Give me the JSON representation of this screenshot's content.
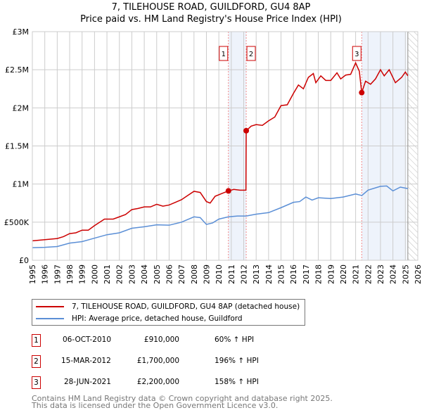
{
  "title": "7, TILEHOUSE ROAD, GUILDFORD, GU4 8AP",
  "subtitle": "Price paid vs. HM Land Registry's House Price Index (HPI)",
  "colors": {
    "property": "#cc0000",
    "hpi": "#5b8fd6",
    "shade": "#eef3fb"
  },
  "chart_data": {
    "type": "line",
    "title": "7, TILEHOUSE ROAD, GUILDFORD, GU4 8AP — Price paid vs. HM Land Registry's House Price Index (HPI)",
    "xlim": [
      1995,
      2026
    ],
    "ylim": [
      0,
      3000000
    ],
    "x_ticks": [
      "1995",
      "1996",
      "1997",
      "1998",
      "1999",
      "2000",
      "2001",
      "2002",
      "2003",
      "2004",
      "2005",
      "2006",
      "2007",
      "2008",
      "2009",
      "2010",
      "2011",
      "2012",
      "2013",
      "2014",
      "2015",
      "2016",
      "2017",
      "2018",
      "2019",
      "2020",
      "2021",
      "2022",
      "2023",
      "2024",
      "2025",
      "2026"
    ],
    "y_ticks": [
      {
        "v": 0,
        "label": "£0"
      },
      {
        "v": 500000,
        "label": "£500K"
      },
      {
        "v": 1000000,
        "label": "£1M"
      },
      {
        "v": 1500000,
        "label": "£1.5M"
      },
      {
        "v": 2000000,
        "label": "£2M"
      },
      {
        "v": 2500000,
        "label": "£2.5M"
      },
      {
        "v": 3000000,
        "label": "£3M"
      }
    ],
    "grid": true,
    "shaded_ranges": [
      [
        2010.77,
        2012.2
      ],
      [
        2021.49,
        2025.1
      ]
    ],
    "forecast_hatch_from": 2025.2,
    "series": [
      {
        "name": "7, TILEHOUSE ROAD, GUILDFORD, GU4 8AP (detached house)",
        "color": "#cc0000",
        "points": [
          [
            1995,
            255000
          ],
          [
            1996,
            270000
          ],
          [
            1997,
            285000
          ],
          [
            1997.5,
            310000
          ],
          [
            1998,
            350000
          ],
          [
            1998.5,
            360000
          ],
          [
            1999,
            395000
          ],
          [
            1999.5,
            395000
          ],
          [
            2000,
            455000
          ],
          [
            2000.8,
            540000
          ],
          [
            2001.5,
            540000
          ],
          [
            2002,
            570000
          ],
          [
            2002.5,
            600000
          ],
          [
            2003,
            665000
          ],
          [
            2003.5,
            680000
          ],
          [
            2004,
            700000
          ],
          [
            2004.5,
            700000
          ],
          [
            2005,
            735000
          ],
          [
            2005.5,
            710000
          ],
          [
            2006,
            725000
          ],
          [
            2006.5,
            760000
          ],
          [
            2007,
            795000
          ],
          [
            2007.5,
            850000
          ],
          [
            2008,
            905000
          ],
          [
            2008.5,
            890000
          ],
          [
            2009,
            770000
          ],
          [
            2009.3,
            750000
          ],
          [
            2009.7,
            840000
          ],
          [
            2010.3,
            880000
          ],
          [
            2010.77,
            910000
          ],
          [
            2011.2,
            930000
          ],
          [
            2011.7,
            920000
          ],
          [
            2012.18,
            920000
          ],
          [
            2012.2,
            1700000
          ],
          [
            2012.6,
            1760000
          ],
          [
            2013,
            1780000
          ],
          [
            2013.5,
            1770000
          ],
          [
            2014,
            1830000
          ],
          [
            2014.5,
            1880000
          ],
          [
            2015,
            2030000
          ],
          [
            2015.5,
            2040000
          ],
          [
            2016,
            2190000
          ],
          [
            2016.4,
            2300000
          ],
          [
            2016.8,
            2250000
          ],
          [
            2017.2,
            2400000
          ],
          [
            2017.6,
            2450000
          ],
          [
            2017.8,
            2330000
          ],
          [
            2018.2,
            2420000
          ],
          [
            2018.6,
            2360000
          ],
          [
            2019,
            2360000
          ],
          [
            2019.5,
            2460000
          ],
          [
            2019.8,
            2380000
          ],
          [
            2020.2,
            2430000
          ],
          [
            2020.6,
            2440000
          ],
          [
            2021,
            2590000
          ],
          [
            2021.3,
            2480000
          ],
          [
            2021.49,
            2200000
          ],
          [
            2021.8,
            2350000
          ],
          [
            2022.2,
            2310000
          ],
          [
            2022.6,
            2380000
          ],
          [
            2023,
            2500000
          ],
          [
            2023.3,
            2420000
          ],
          [
            2023.7,
            2500000
          ],
          [
            2024.2,
            2330000
          ],
          [
            2024.7,
            2400000
          ],
          [
            2025,
            2470000
          ],
          [
            2025.2,
            2420000
          ]
        ]
      },
      {
        "name": "HPI: Average price, detached house, Guildford",
        "color": "#5b8fd6",
        "points": [
          [
            1995,
            165000
          ],
          [
            1996,
            170000
          ],
          [
            1997,
            180000
          ],
          [
            1998,
            225000
          ],
          [
            1999,
            245000
          ],
          [
            2000,
            290000
          ],
          [
            2001,
            335000
          ],
          [
            2002,
            360000
          ],
          [
            2003,
            420000
          ],
          [
            2004,
            440000
          ],
          [
            2005,
            465000
          ],
          [
            2006,
            460000
          ],
          [
            2007,
            500000
          ],
          [
            2008,
            570000
          ],
          [
            2008.5,
            560000
          ],
          [
            2009,
            470000
          ],
          [
            2009.5,
            490000
          ],
          [
            2010,
            540000
          ],
          [
            2010.77,
            570000
          ],
          [
            2011.5,
            580000
          ],
          [
            2012.2,
            580000
          ],
          [
            2013,
            605000
          ],
          [
            2014,
            625000
          ],
          [
            2015,
            690000
          ],
          [
            2016,
            760000
          ],
          [
            2016.5,
            770000
          ],
          [
            2017,
            830000
          ],
          [
            2017.5,
            790000
          ],
          [
            2018,
            820000
          ],
          [
            2019,
            810000
          ],
          [
            2020,
            830000
          ],
          [
            2021,
            870000
          ],
          [
            2021.5,
            850000
          ],
          [
            2022,
            920000
          ],
          [
            2023,
            970000
          ],
          [
            2023.5,
            975000
          ],
          [
            2024,
            910000
          ],
          [
            2024.6,
            960000
          ],
          [
            2025.2,
            940000
          ]
        ]
      }
    ],
    "sales": [
      {
        "n": "1",
        "x": 2010.77,
        "y": 910000
      },
      {
        "n": "2",
        "x": 2012.2,
        "y": 1700000
      },
      {
        "n": "3",
        "x": 2021.49,
        "y": 2200000
      }
    ]
  },
  "legend": [
    {
      "label": "7, TILEHOUSE ROAD, GUILDFORD, GU4 8AP (detached house)"
    },
    {
      "label": "HPI: Average price, detached house, Guildford"
    }
  ],
  "transactions": [
    {
      "n": "1",
      "date": "06-OCT-2010",
      "price": "£910,000",
      "hpi": "60% ↑ HPI"
    },
    {
      "n": "2",
      "date": "15-MAR-2012",
      "price": "£1,700,000",
      "hpi": "196% ↑ HPI"
    },
    {
      "n": "3",
      "date": "28-JUN-2021",
      "price": "£2,200,000",
      "hpi": "158% ↑ HPI"
    }
  ],
  "footer": [
    "Contains HM Land Registry data © Crown copyright and database right 2025.",
    "This data is licensed under the Open Government Licence v3.0."
  ]
}
